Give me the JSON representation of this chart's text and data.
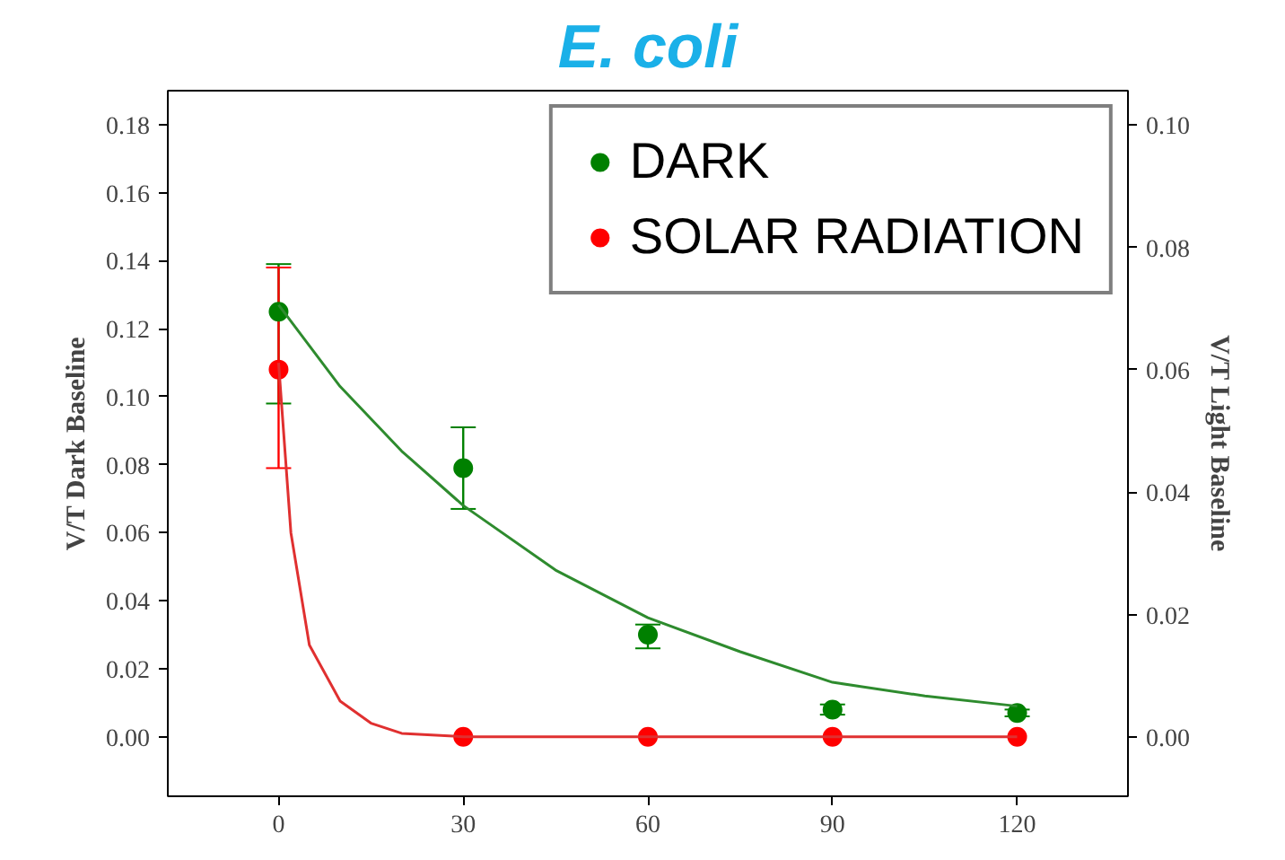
{
  "chart_data": {
    "type": "scatter",
    "title": "E. coli",
    "ylabel": "V/T Dark Baseline",
    "y2label": "V/T Light Baseline",
    "xlim": [
      -18,
      138
    ],
    "xticks": [
      0,
      30,
      60,
      90,
      120
    ],
    "ylim": [
      -0.0175,
      0.19
    ],
    "yticks": [
      {
        "value": 0,
        "label": "0.00"
      },
      {
        "value": 0.02,
        "label": "0.02"
      },
      {
        "value": 0.04,
        "label": "0.04"
      },
      {
        "value": 0.06,
        "label": "0.06"
      },
      {
        "value": 0.08,
        "label": "0.08"
      },
      {
        "value": 0.1,
        "label": "0.10"
      },
      {
        "value": 0.12,
        "label": "0.12"
      },
      {
        "value": 0.14,
        "label": "0.14"
      },
      {
        "value": 0.16,
        "label": "0.16"
      },
      {
        "value": 0.18,
        "label": "0.18"
      }
    ],
    "y2lim": [
      -0.0097,
      0.1056
    ],
    "y2ticks": [
      {
        "value": 0,
        "label": "0.00"
      },
      {
        "value": 0.02,
        "label": "0.02"
      },
      {
        "value": 0.04,
        "label": "0.04"
      },
      {
        "value": 0.06,
        "label": "0.06"
      },
      {
        "value": 0.08,
        "label": "0.08"
      },
      {
        "value": 0.1,
        "label": "0.10"
      }
    ],
    "x": [
      0,
      30,
      60,
      90,
      120
    ],
    "series": [
      {
        "name": "DARK",
        "color": "#008000",
        "values": [
          0.125,
          0.079,
          0.03,
          0.008,
          0.007
        ],
        "errors": [
          [
            0.098,
            0.139
          ],
          [
            0.067,
            0.091
          ],
          [
            0.026,
            0.033
          ],
          [
            0.0065,
            0.0095
          ],
          [
            0.006,
            0.008
          ]
        ]
      },
      {
        "name": "SOLAR RADIATION",
        "color": "#ff0000",
        "values": [
          0.108,
          0,
          0,
          0,
          0
        ],
        "errors": [
          [
            0.079,
            0.138
          ],
          null,
          null,
          null,
          null
        ]
      },
      {
        "type": "line",
        "marker": "none",
        "color": "#2e8b2e",
        "x": [
          0,
          10,
          20,
          30,
          45,
          60,
          75,
          90,
          105,
          120
        ],
        "values": [
          0.127,
          0.103,
          0.084,
          0.068,
          0.049,
          0.035,
          0.025,
          0.016,
          0.012,
          0.009
        ]
      },
      {
        "type": "line",
        "marker": "none",
        "color": "#e03030",
        "x": [
          0,
          2,
          5,
          10,
          15,
          20,
          30,
          60,
          90,
          120
        ],
        "values": [
          0.11,
          0.06,
          0.027,
          0.0105,
          0.004,
          0.001,
          0,
          0,
          0,
          0
        ]
      }
    ],
    "marker": "circle",
    "grid": false,
    "legend": "top right"
  }
}
